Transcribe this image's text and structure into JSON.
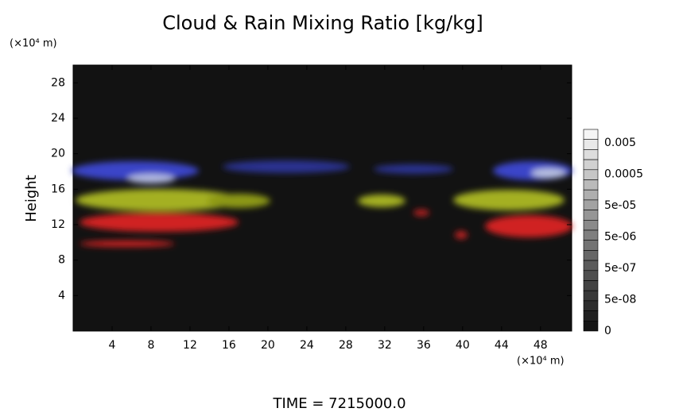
{
  "chart_data": {
    "type": "heatmap",
    "title": "Cloud & Rain Mixing Ratio [kg/kg]",
    "y_label": "Height",
    "y_unit": "(×10⁴ m)",
    "x_unit": "(×10⁴ m)",
    "xlim": [
      0,
      51.2
    ],
    "xticks": [
      4,
      8,
      12,
      16,
      20,
      24,
      28,
      32,
      36,
      40,
      44,
      48
    ],
    "ylim": [
      0,
      30
    ],
    "yticks": [
      4,
      8,
      12,
      16,
      20,
      24,
      28
    ],
    "colorbar_labels": [
      "0.005",
      "0.0005",
      "5e-05",
      "5e-06",
      "5e-07",
      "5e-08",
      "0"
    ],
    "footer": "TIME = 7215000.0"
  }
}
